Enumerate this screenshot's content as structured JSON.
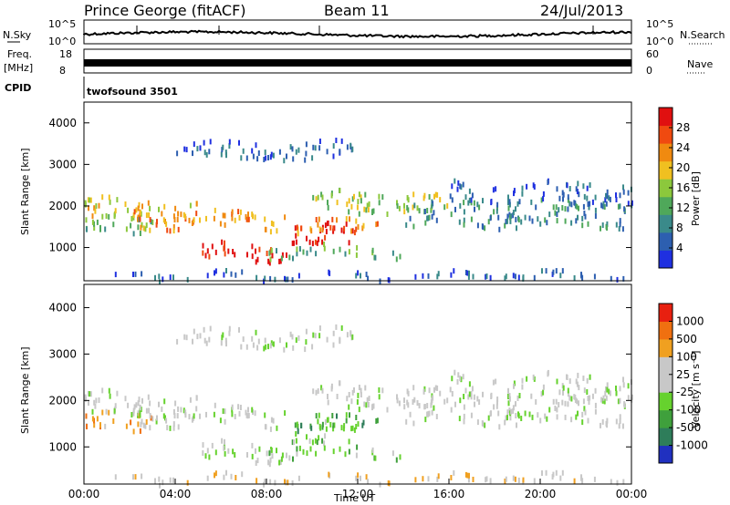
{
  "header": {
    "station": "Prince George (fitACF)",
    "beam": "Beam 11",
    "date": "24/Jul/2013"
  },
  "panels": {
    "nsky_label": "N.Sky",
    "nsky_ticks": [
      "10^5",
      "10^0"
    ],
    "nsearch_label": "N.Search",
    "nsearch_ticks": [
      "10^5",
      "10^0"
    ],
    "freq_label_1": "Freq.",
    "freq_label_2": "[MHz]",
    "freq_ticks": [
      "18",
      "8"
    ],
    "nave_label": "Nave",
    "nave_ticks": [
      "60",
      "0"
    ],
    "cpid_label": "CPID",
    "cpid_value": "twofsound 3501"
  },
  "chart_data": [
    {
      "type": "heatmap",
      "name": "power",
      "ylabel": "Slant Range [km]",
      "yticks": [
        "1000",
        "2000",
        "3000",
        "4000"
      ],
      "ylim": [
        200,
        4500
      ],
      "colorbar_label": "Power [dB]",
      "colorbar_ticks": [
        "4",
        "8",
        "12",
        "16",
        "20",
        "24",
        "28"
      ],
      "colors": [
        "#1f30e0",
        "#2d5fb0",
        "#3a8a8a",
        "#4fa85a",
        "#8cc83c",
        "#f0c020",
        "#f08a10",
        "#f04a10",
        "#e01010"
      ]
    },
    {
      "type": "heatmap",
      "name": "velocity",
      "ylabel": "Slant Range [km]",
      "yticks": [
        "1000",
        "2000",
        "3000",
        "4000"
      ],
      "ylim": [
        200,
        4500
      ],
      "colorbar_label": "Velocity [m s⁻¹]",
      "colorbar_ticks": [
        "1000",
        "500",
        "100",
        "25",
        "-25",
        "-100",
        "-500",
        "-1000"
      ],
      "colors": [
        "#2030c0",
        "#2e7d5a",
        "#3fa03c",
        "#66d22e",
        "#c8c8c8",
        "#c8c8c8",
        "#f0a020",
        "#f07010",
        "#e82010"
      ],
      "xlabel": "Time UT",
      "xticks": [
        "00:00",
        "04:00",
        "08:00",
        "12:00",
        "16:00",
        "20:00",
        "00:00"
      ]
    }
  ]
}
